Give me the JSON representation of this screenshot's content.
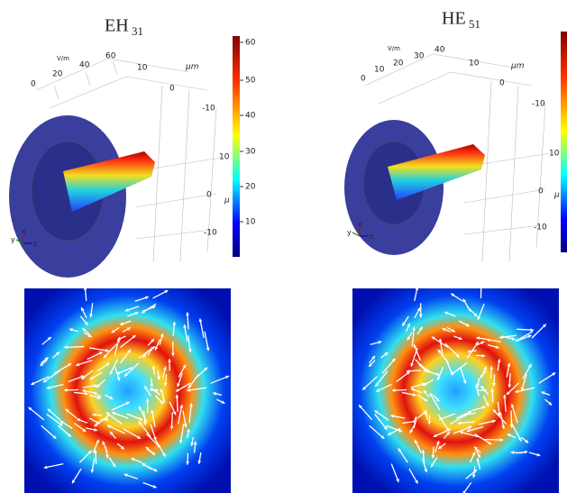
{
  "panels": [
    {
      "title": "EH",
      "subscript": "31",
      "unit": "V/m",
      "axis_labels": [
        "0",
        "20",
        "40",
        "60",
        "10",
        "μm",
        "0",
        "-10",
        "10",
        "0",
        "μ",
        "-10"
      ],
      "colorbar_ticks": [
        "60",
        "50",
        "40",
        "30",
        "20",
        "10"
      ],
      "triad": [
        "y",
        "x",
        "z"
      ]
    },
    {
      "title": "HE",
      "subscript": "51",
      "unit": "V/m",
      "axis_labels": [
        "0",
        "10",
        "20",
        "30",
        "40",
        "10",
        "μm",
        "0",
        "-10",
        "10",
        "0",
        "μ",
        "-10"
      ],
      "triad": [
        "y",
        "x",
        "z"
      ]
    }
  ]
}
